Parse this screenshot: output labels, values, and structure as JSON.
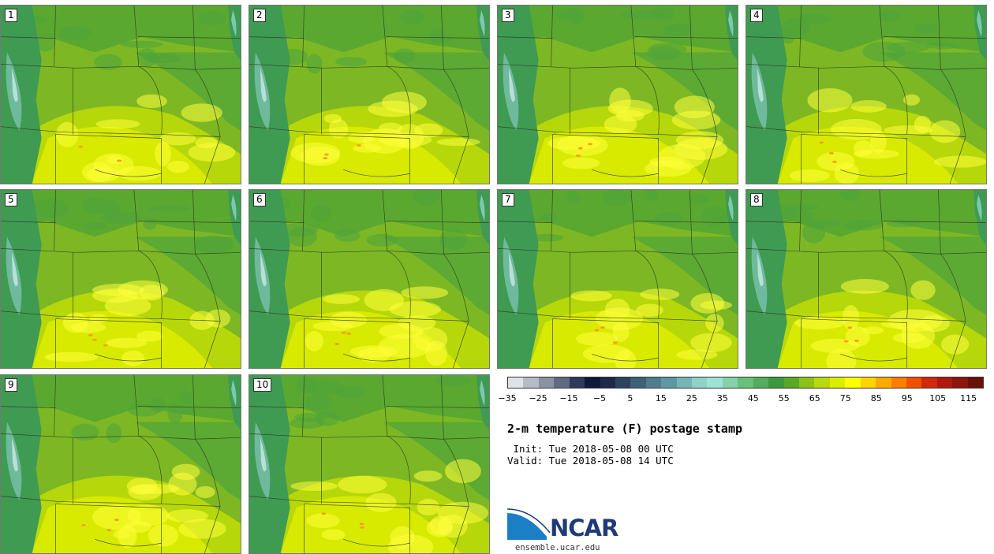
{
  "panels": [
    {
      "label": "1"
    },
    {
      "label": "2"
    },
    {
      "label": "3"
    },
    {
      "label": "4"
    },
    {
      "label": "5"
    },
    {
      "label": "6"
    },
    {
      "label": "7"
    },
    {
      "label": "8"
    },
    {
      "label": "9"
    },
    {
      "label": "10"
    }
  ],
  "colorbar": {
    "colors": [
      "#dfe3e8",
      "#b6bcc6",
      "#8a92a3",
      "#5f6a82",
      "#2d3a5c",
      "#0d1a3a",
      "#1c2a48",
      "#2c4460",
      "#3d6178",
      "#4f7d8e",
      "#5f98a2",
      "#75b5b5",
      "#8fd3c8",
      "#9ee4d6",
      "#86d1a9",
      "#68c07a",
      "#52ad5e",
      "#3d9a3c",
      "#5aa826",
      "#8cc31a",
      "#b9d90c",
      "#dcee00",
      "#ffff00",
      "#ffd400",
      "#ffaa00",
      "#ff7d00",
      "#f05000",
      "#d02a0a",
      "#b01a0e",
      "#8c1609",
      "#6a1006"
    ],
    "ticks": [
      "−35",
      "−25",
      "−15",
      "−5",
      "5",
      "15",
      "25",
      "35",
      "45",
      "55",
      "65",
      "75",
      "85",
      "95",
      "105",
      "115"
    ]
  },
  "title": "2-m temperature (F) postage stamp",
  "init_line": " Init: Tue 2018-05-08 00 UTC",
  "valid_line": "Valid: Tue 2018-05-08 14 UTC",
  "logo": {
    "name": "NCAR",
    "url": "ensemble.ucar.edu",
    "brand_color": "#1f3a78",
    "accent": "#1a7fc4"
  }
}
